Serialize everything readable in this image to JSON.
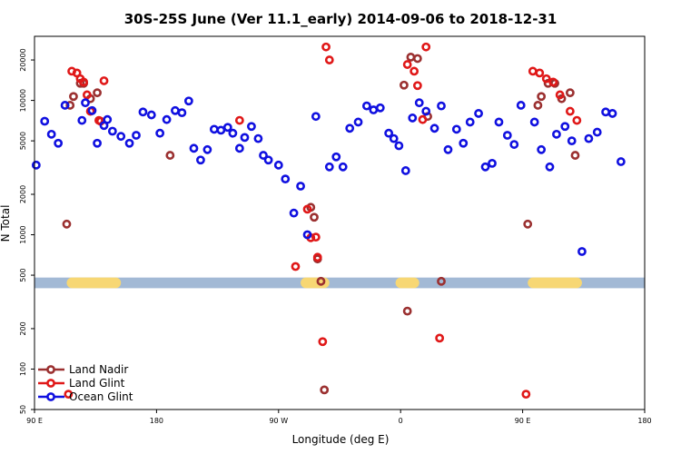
{
  "chart_data": {
    "type": "scatter",
    "title": "30S-25S June (Ver 11.1_early)   2014-09-06 to 2018-12-31",
    "xlabel": "Longitude (deg E)",
    "ylabel": "N Total",
    "y_scale": "log",
    "xlim": [
      90,
      450
    ],
    "ylim": [
      50,
      30000
    ],
    "x_ticks": [
      {
        "value": 90,
        "label": "90 E"
      },
      {
        "value": 162,
        "label": "180"
      },
      {
        "value": 234,
        "label": "90 W"
      },
      {
        "value": 306,
        "label": "0"
      },
      {
        "value": 378,
        "label": "90 E"
      },
      {
        "value": 450,
        "label": "180"
      }
    ],
    "y_ticks": [
      50,
      100,
      200,
      500,
      1000,
      2000,
      5000,
      10000,
      20000
    ],
    "legend": {
      "position": "bottom-left",
      "entries": [
        "Land Nadir",
        "Land Glint",
        "Ocean Glint"
      ]
    },
    "band": {
      "y_range": [
        400,
        480
      ],
      "color": "#a2b9d5",
      "land_color": "#f7d774",
      "land_spans": [
        [
          109,
          141
        ],
        [
          247,
          264
        ],
        [
          303,
          317
        ],
        [
          381,
          413
        ]
      ]
    },
    "series": [
      {
        "name": "Land Nadir",
        "color": "#9b3030",
        "x": [
          109,
          111,
          113,
          117,
          119,
          123,
          127,
          170,
          253,
          255,
          257,
          259,
          261,
          308,
          310,
          312,
          316,
          322,
          330,
          381,
          387,
          389,
          393,
          397,
          401,
          406,
          409
        ],
        "y": [
          1200,
          9200,
          10700,
          13400,
          13400,
          10300,
          11400,
          3900,
          1600,
          1350,
          660,
          450,
          70,
          13000,
          270,
          21000,
          20500,
          7600,
          450,
          1200,
          9200,
          10700,
          13400,
          13400,
          10300,
          11400,
          3900
        ]
      },
      {
        "name": "Land Glint",
        "color": "#e01818",
        "x": [
          110,
          112,
          115,
          117,
          119,
          121,
          123,
          128,
          129,
          131,
          211,
          244,
          251,
          253,
          256,
          257,
          260,
          262,
          264,
          310,
          314,
          316,
          319,
          321,
          329,
          380,
          384,
          388,
          392,
          396,
          400,
          406,
          410
        ],
        "y": [
          65,
          16500,
          16000,
          14500,
          13700,
          11000,
          8300,
          7100,
          7000,
          14000,
          7100,
          580,
          1550,
          950,
          960,
          680,
          160,
          25000,
          20000,
          18500,
          16500,
          12900,
          7200,
          25000,
          170,
          65,
          16500,
          16000,
          14500,
          13700,
          11000,
          8300,
          7100
        ]
      },
      {
        "name": "Ocean Glint",
        "color": "#1010e0",
        "x": [
          91,
          96,
          100,
          104,
          108,
          118,
          120,
          124,
          127,
          131,
          133,
          136,
          141,
          146,
          150,
          154,
          159,
          164,
          168,
          173,
          177,
          181,
          184,
          188,
          192,
          196,
          200,
          204,
          207,
          211,
          214,
          218,
          222,
          225,
          228,
          234,
          238,
          243,
          247,
          251,
          256,
          264,
          268,
          272,
          276,
          281,
          286,
          290,
          294,
          299,
          302,
          305,
          309,
          313,
          317,
          321,
          326,
          330,
          334,
          339,
          343,
          347,
          352,
          356,
          360,
          364,
          369,
          373,
          377,
          385,
          389,
          394,
          398,
          403,
          407,
          413,
          417,
          422,
          427,
          431,
          436
        ],
        "y": [
          3300,
          7000,
          5600,
          4800,
          9200,
          7100,
          9600,
          8400,
          4800,
          6500,
          7200,
          5900,
          5400,
          4800,
          5500,
          8200,
          7800,
          5700,
          7200,
          8400,
          8100,
          9900,
          4400,
          3600,
          4300,
          6100,
          6000,
          6300,
          5700,
          4400,
          5300,
          6400,
          5200,
          3900,
          3600,
          3300,
          2600,
          1450,
          2300,
          1000,
          7600,
          3200,
          3800,
          3200,
          6200,
          6900,
          9100,
          8500,
          8800,
          5700,
          5200,
          4600,
          3000,
          7400,
          9600,
          8300,
          6200,
          9100,
          4300,
          6100,
          4800,
          6900,
          8000,
          3200,
          3400,
          6900,
          5500,
          4700,
          9200,
          6900,
          4300,
          3200,
          5600,
          6400,
          5000,
          750,
          5200,
          5800,
          8200,
          8000,
          3500
        ]
      }
    ]
  }
}
